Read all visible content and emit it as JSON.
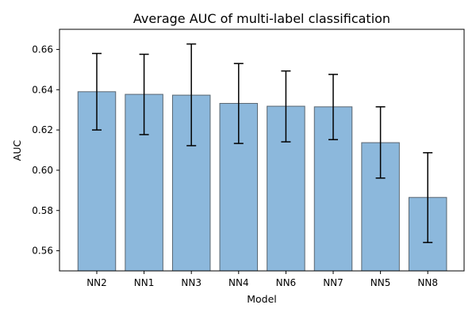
{
  "chart_data": {
    "type": "bar",
    "title": "Average AUC of multi-label classification",
    "xlabel": "Model",
    "ylabel": "AUC",
    "categories": [
      "NN2",
      "NN1",
      "NN3",
      "NN4",
      "NN6",
      "NN7",
      "NN5",
      "NN8"
    ],
    "values": [
      0.639,
      0.6377,
      0.6373,
      0.6332,
      0.6318,
      0.6315,
      0.6137,
      0.5865
    ],
    "error_low": [
      0.62,
      0.6177,
      0.6122,
      0.6133,
      0.6141,
      0.6152,
      0.5961,
      0.5641
    ],
    "error_high": [
      0.658,
      0.6576,
      0.6627,
      0.653,
      0.6493,
      0.6476,
      0.6315,
      0.6087
    ],
    "ylim": [
      0.55,
      0.67
    ],
    "yticks": [
      "0.56",
      "0.58",
      "0.60",
      "0.62",
      "0.64",
      "0.66"
    ],
    "grid": false,
    "legend": "none",
    "colors": {
      "bar_fill": "#8cb8dc",
      "bar_edge": "#5a6670",
      "error_bar": "#000000",
      "axis": "#000000"
    }
  }
}
